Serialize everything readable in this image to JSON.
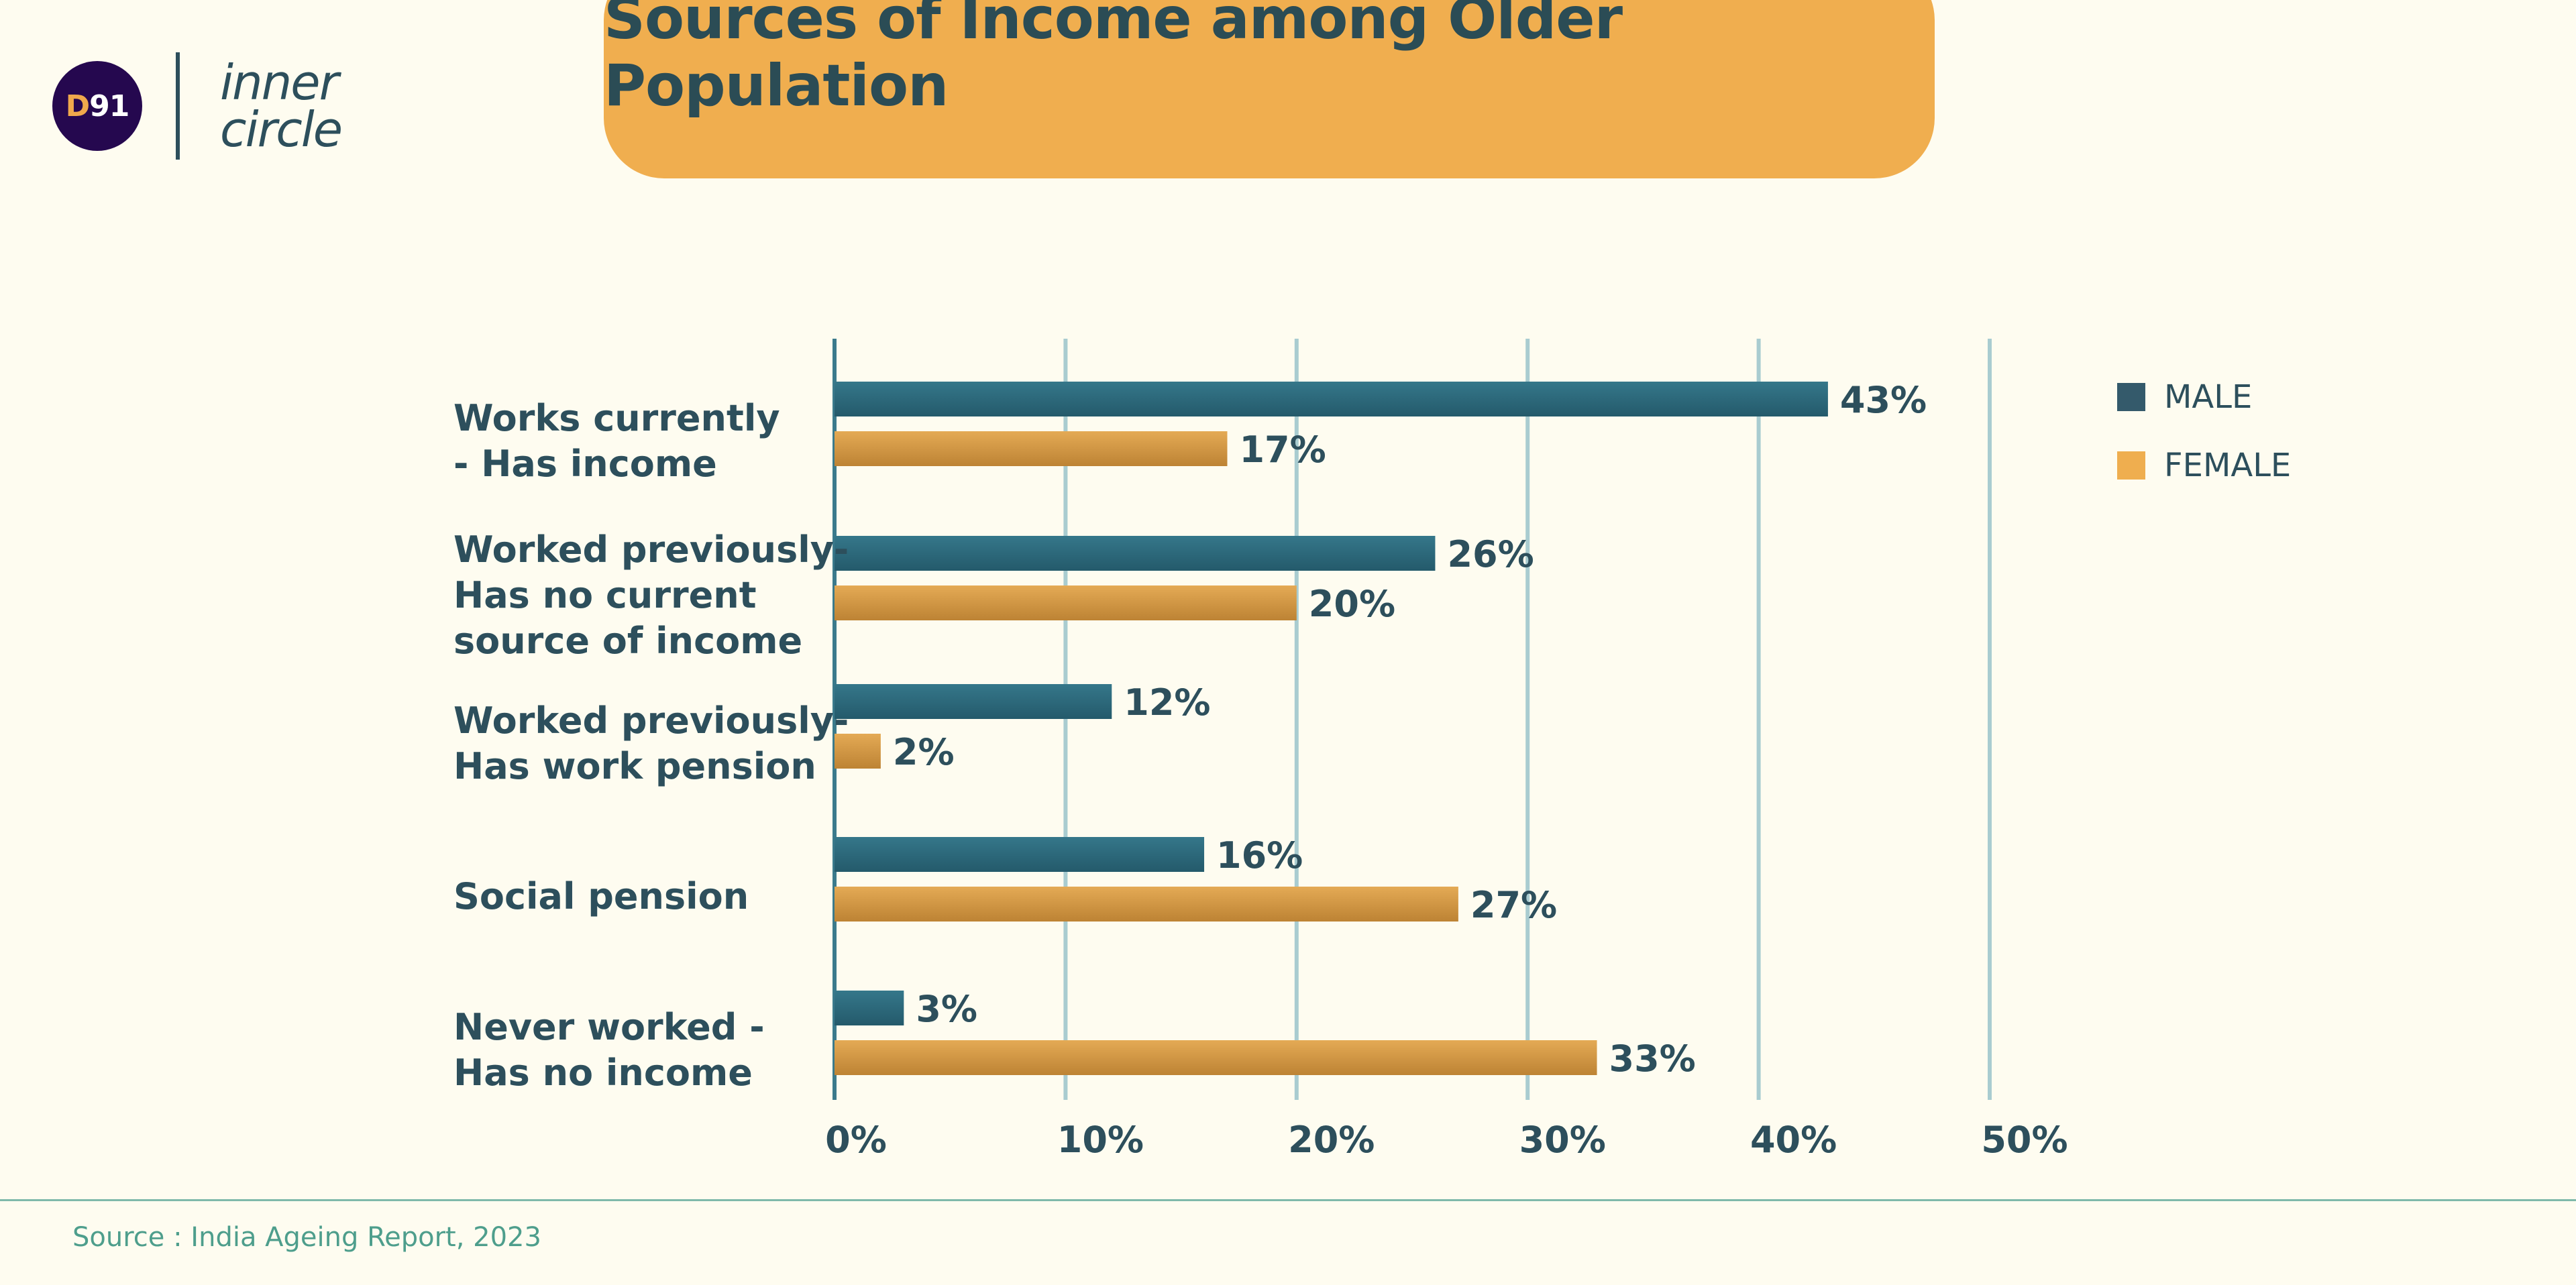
{
  "brand": {
    "logo_mark_d": "D",
    "logo_mark_num": "91",
    "logo_line1": "inner",
    "logo_line2": "circle"
  },
  "header": {
    "title": "Sources of Income among Older Population"
  },
  "footer": {
    "source": "Source : India Ageing Report, 2023"
  },
  "colors": {
    "male": "#2c6677",
    "female": "#d4973e",
    "grid": "#a9ccd0",
    "text": "#2d4f5c"
  },
  "chart_data": {
    "type": "bar",
    "orientation": "horizontal",
    "title": "Sources of Income among Older Population",
    "categories": [
      [
        "Works currently",
        "- Has income"
      ],
      [
        "Worked previously-",
        "Has no current",
        "source of income"
      ],
      [
        "Worked previously-",
        "Has work pension"
      ],
      [
        "Social pension"
      ],
      [
        "Never worked -",
        "Has no income"
      ]
    ],
    "series": [
      {
        "name": "MALE",
        "values": [
          43,
          26,
          12,
          16,
          3
        ]
      },
      {
        "name": "FEMALE",
        "values": [
          17,
          20,
          2,
          27,
          33
        ]
      }
    ],
    "xlim": [
      0,
      50
    ],
    "xticks": [
      0,
      10,
      20,
      30,
      40,
      50
    ],
    "tick_labels": [
      "0%",
      "10%",
      "20%",
      "30%",
      "40%",
      "50%"
    ],
    "value_suffix": "%",
    "grid": true,
    "legend": "top-right"
  }
}
